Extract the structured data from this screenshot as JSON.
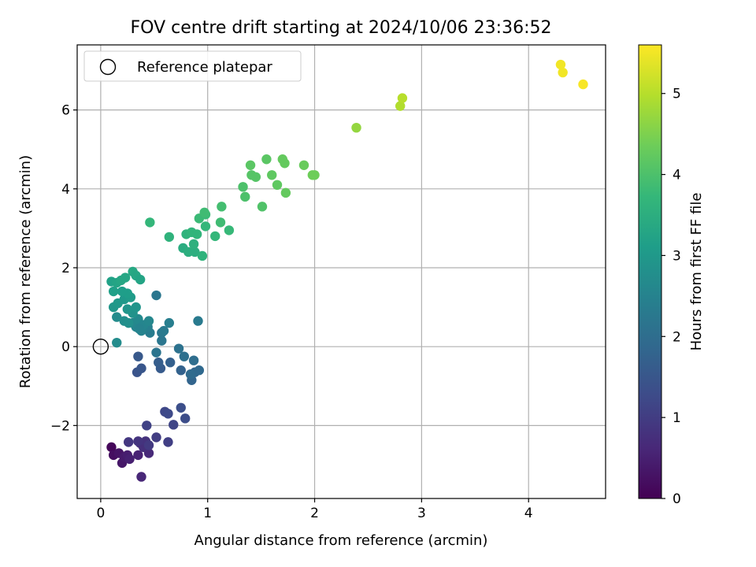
{
  "chart_data": {
    "type": "scatter",
    "title": "FOV centre drift starting at 2024/10/06 23:36:52",
    "xlabel": "Angular distance from reference (arcmin)",
    "ylabel": "Rotation from reference (arcmin)",
    "xlim": [
      -0.22,
      4.72
    ],
    "ylim": [
      -3.85,
      7.65
    ],
    "xticks": [
      0,
      1,
      2,
      3,
      4
    ],
    "xtick_labels": [
      "0",
      "1",
      "2",
      "3",
      "4"
    ],
    "yticks": [
      -2,
      0,
      2,
      4,
      6
    ],
    "ytick_labels": [
      "−2",
      "0",
      "2",
      "4",
      "6"
    ],
    "grid": true,
    "legend": {
      "placement": "upper-left",
      "entries": [
        "Reference platepar"
      ]
    },
    "reference_point": {
      "x": 0,
      "y": 0,
      "label": "Reference platepar"
    },
    "colorbar": {
      "label": "Hours from first FF file",
      "range": [
        0,
        5.6
      ],
      "ticks": [
        0,
        1,
        2,
        3,
        4,
        5
      ],
      "tick_labels": [
        "0",
        "1",
        "2",
        "3",
        "4",
        "5"
      ],
      "colormap": "viridis"
    },
    "points": [
      [
        0.1,
        -2.55,
        0.1
      ],
      [
        0.12,
        -2.75,
        0.2
      ],
      [
        0.17,
        -2.7,
        0.3
      ],
      [
        0.2,
        -2.95,
        0.35
      ],
      [
        0.22,
        -2.8,
        0.4
      ],
      [
        0.25,
        -2.75,
        0.45
      ],
      [
        0.27,
        -2.85,
        0.5
      ],
      [
        0.35,
        -2.75,
        0.55
      ],
      [
        0.38,
        -3.3,
        0.6
      ],
      [
        0.45,
        -2.7,
        0.65
      ],
      [
        0.37,
        -2.45,
        0.7
      ],
      [
        0.4,
        -2.55,
        0.75
      ],
      [
        0.42,
        -2.4,
        0.8
      ],
      [
        0.35,
        -2.4,
        0.85
      ],
      [
        0.26,
        -2.42,
        0.9
      ],
      [
        0.45,
        -2.5,
        0.95
      ],
      [
        0.52,
        -2.3,
        1.0
      ],
      [
        0.63,
        -2.42,
        1.05
      ],
      [
        0.43,
        -2.0,
        1.1
      ],
      [
        0.68,
        -1.98,
        1.15
      ],
      [
        0.6,
        -1.65,
        1.2
      ],
      [
        0.63,
        -1.7,
        1.25
      ],
      [
        0.79,
        -1.82,
        1.3
      ],
      [
        0.75,
        -1.55,
        1.35
      ],
      [
        0.34,
        -0.65,
        1.45
      ],
      [
        0.38,
        -0.55,
        1.5
      ],
      [
        0.35,
        -0.25,
        1.55
      ],
      [
        0.56,
        -0.55,
        1.6
      ],
      [
        0.54,
        -0.4,
        1.65
      ],
      [
        0.65,
        -0.4,
        1.7
      ],
      [
        0.75,
        -0.6,
        1.75
      ],
      [
        0.85,
        -0.85,
        1.8
      ],
      [
        0.88,
        -0.65,
        1.85
      ],
      [
        0.92,
        -0.6,
        1.9
      ],
      [
        0.84,
        -0.7,
        1.95
      ],
      [
        0.87,
        -0.35,
        2.0
      ],
      [
        0.78,
        -0.25,
        2.05
      ],
      [
        0.73,
        -0.05,
        2.1
      ],
      [
        0.52,
        -0.15,
        2.15
      ],
      [
        0.57,
        0.15,
        2.2
      ],
      [
        0.57,
        0.35,
        2.25
      ],
      [
        0.59,
        0.4,
        2.3
      ],
      [
        0.46,
        0.35,
        2.35
      ],
      [
        0.91,
        0.65,
        2.3
      ],
      [
        0.52,
        1.3,
        2.2
      ],
      [
        0.64,
        0.6,
        2.4
      ],
      [
        0.44,
        0.5,
        2.45
      ],
      [
        0.38,
        0.4,
        2.5
      ],
      [
        0.33,
        0.5,
        2.55
      ],
      [
        0.3,
        0.6,
        2.6
      ],
      [
        0.35,
        0.7,
        2.65
      ],
      [
        0.4,
        0.55,
        2.55
      ],
      [
        0.45,
        0.65,
        2.6
      ],
      [
        0.36,
        0.45,
        2.5
      ],
      [
        0.15,
        0.1,
        2.7
      ],
      [
        0.15,
        0.75,
        2.7
      ],
      [
        0.22,
        0.65,
        2.75
      ],
      [
        0.26,
        0.6,
        2.8
      ],
      [
        0.3,
        0.85,
        2.85
      ],
      [
        0.25,
        0.95,
        2.9
      ],
      [
        0.33,
        1.0,
        2.9
      ],
      [
        0.12,
        1.0,
        2.95
      ],
      [
        0.16,
        1.1,
        3.0
      ],
      [
        0.22,
        1.2,
        3.0
      ],
      [
        0.28,
        1.25,
        3.05
      ],
      [
        0.25,
        1.35,
        3.1
      ],
      [
        0.2,
        1.4,
        3.1
      ],
      [
        0.12,
        1.4,
        3.15
      ],
      [
        0.1,
        1.65,
        3.2
      ],
      [
        0.15,
        1.62,
        3.25
      ],
      [
        0.19,
        1.68,
        3.3
      ],
      [
        0.23,
        1.75,
        3.3
      ],
      [
        0.3,
        1.9,
        3.35
      ],
      [
        0.33,
        1.8,
        3.3
      ],
      [
        0.37,
        1.7,
        3.25
      ],
      [
        0.77,
        2.5,
        3.45
      ],
      [
        0.82,
        2.4,
        3.5
      ],
      [
        0.88,
        2.4,
        3.5
      ],
      [
        0.87,
        2.6,
        3.55
      ],
      [
        0.95,
        2.3,
        3.6
      ],
      [
        0.8,
        2.85,
        3.6
      ],
      [
        0.85,
        2.9,
        3.65
      ],
      [
        0.9,
        2.85,
        3.65
      ],
      [
        0.98,
        3.05,
        3.7
      ],
      [
        1.07,
        2.8,
        3.7
      ],
      [
        1.2,
        2.95,
        3.75
      ],
      [
        0.92,
        3.25,
        3.8
      ],
      [
        0.98,
        3.35,
        3.8
      ],
      [
        1.12,
        3.15,
        3.85
      ],
      [
        0.46,
        3.15,
        3.7
      ],
      [
        0.64,
        2.78,
        3.6
      ],
      [
        0.97,
        3.4,
        3.85
      ],
      [
        1.13,
        3.55,
        3.9
      ],
      [
        1.35,
        3.8,
        4.0
      ],
      [
        1.33,
        4.05,
        4.0
      ],
      [
        1.51,
        3.55,
        4.05
      ],
      [
        1.41,
        4.35,
        4.1
      ],
      [
        1.45,
        4.3,
        4.1
      ],
      [
        1.4,
        4.6,
        4.15
      ],
      [
        1.55,
        4.75,
        4.15
      ],
      [
        1.6,
        4.35,
        4.2
      ],
      [
        1.65,
        4.1,
        4.2
      ],
      [
        1.7,
        4.75,
        4.25
      ],
      [
        1.72,
        4.65,
        4.25
      ],
      [
        1.73,
        3.9,
        4.25
      ],
      [
        1.9,
        4.6,
        4.3
      ],
      [
        1.98,
        4.35,
        4.35
      ],
      [
        2.0,
        4.35,
        4.35
      ],
      [
        2.39,
        5.55,
        4.7
      ],
      [
        2.8,
        6.1,
        4.95
      ],
      [
        2.82,
        6.3,
        5.0
      ],
      [
        4.3,
        7.15,
        5.5
      ],
      [
        4.32,
        6.95,
        5.5
      ],
      [
        4.51,
        6.65,
        5.55
      ]
    ]
  }
}
